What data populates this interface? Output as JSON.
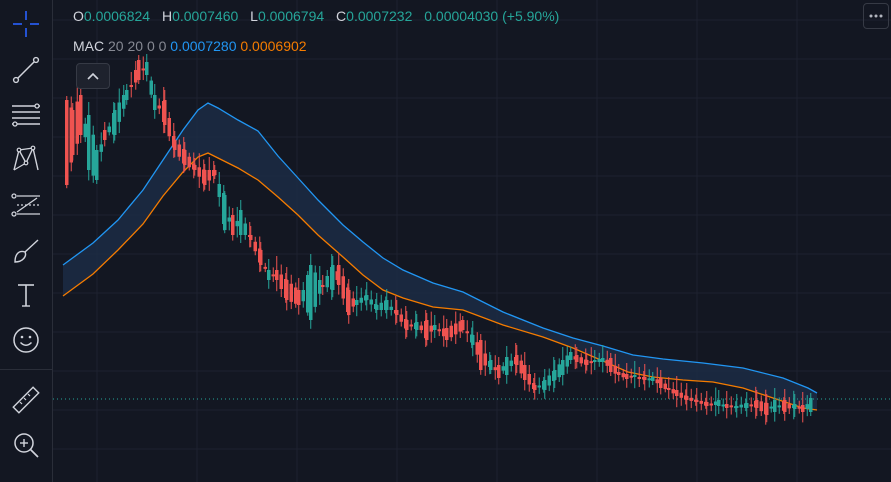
{
  "legend": {
    "o_label": "O",
    "o_value": "0.0006824",
    "h_label": "H",
    "h_value": "0.0007460",
    "l_label": "L",
    "l_value": "0.0006794",
    "c_label": "C",
    "c_value": "0.0007232",
    "change": "0.00004030 (+5.90%)"
  },
  "indicator": {
    "name": "MAC",
    "params": "20 20 0 0",
    "upper_value": "0.0007280",
    "lower_value": "0.0006902"
  },
  "colors": {
    "background": "#131722",
    "up": "#26a69a",
    "down": "#ef5350",
    "upper_band": "#2196f3",
    "lower_band": "#f57c00",
    "band_fill": "#1c2b44"
  },
  "toolbar": {
    "icons": [
      "crosshair-icon",
      "trend-line-icon",
      "fib-retracement-icon",
      "pattern-icon",
      "forecast-icon",
      "brush-icon",
      "text-icon",
      "smiley-icon",
      "ruler-icon",
      "zoom-in-icon"
    ]
  },
  "chart_data": {
    "type": "candlestick",
    "indicator": "Moving Average Channel",
    "grid": true,
    "ohlc_last": {
      "open": 0.0006824,
      "high": 0.000746,
      "low": 0.0006794,
      "close": 0.0007232
    }
  }
}
